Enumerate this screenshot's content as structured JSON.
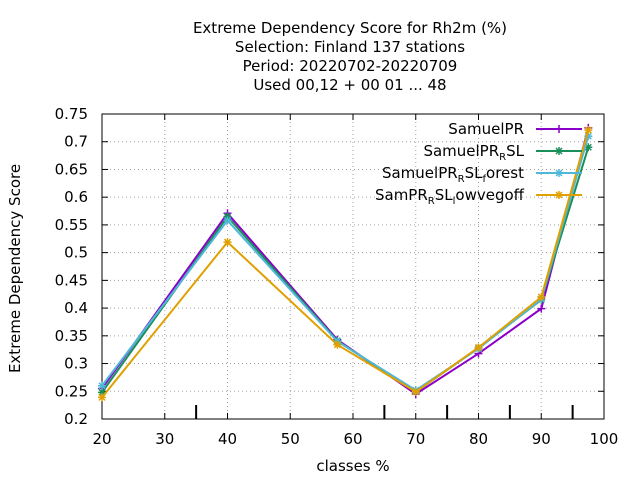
{
  "chart_data": {
    "type": "line",
    "title": [
      "Extreme Dependency Score  for Rh2m (%)",
      "Selection: Finland     137 stations",
      "Period: 20220702-20220709",
      "Used  00,12  + 00 01 ... 48"
    ],
    "xlabel": "classes %",
    "ylabel": "Extreme Dependency Score",
    "xlim": [
      20,
      100
    ],
    "ylim": [
      0.2,
      0.75
    ],
    "x_ticks": [
      20,
      30,
      40,
      50,
      60,
      70,
      80,
      90,
      100
    ],
    "y_ticks": [
      0.2,
      0.25,
      0.3,
      0.35,
      0.4,
      0.45,
      0.5,
      0.55,
      0.6,
      0.65,
      0.7,
      0.75
    ],
    "x_tick_labels": [
      "20",
      "30",
      "40",
      "50",
      "60",
      "70",
      "80",
      "90",
      "100"
    ],
    "y_tick_labels": [
      "0.2",
      "0.25",
      "0.3",
      "0.35",
      "0.4",
      "0.45",
      "0.5",
      "0.55",
      "0.6",
      "0.65",
      "0.7",
      "0.75"
    ],
    "bottom_markers": [
      35,
      65,
      75,
      85,
      95
    ],
    "grid": true,
    "legend_position": "top-right",
    "series": [
      {
        "name": "SamuelPR",
        "legend_parts": [
          {
            "t": "SamuelPR",
            "sub": false
          }
        ],
        "color": "#8b00c8",
        "marker": "plus",
        "x": [
          20,
          40,
          57.5,
          70,
          80,
          90,
          97.5
        ],
        "y": [
          0.255,
          0.571,
          0.343,
          0.245,
          0.318,
          0.399,
          0.725
        ]
      },
      {
        "name": "SamuelPR_RSL",
        "legend_parts": [
          {
            "t": "SamuelPR",
            "sub": false
          },
          {
            "t": "R",
            "sub": true
          },
          {
            "t": "SL",
            "sub": false
          }
        ],
        "color": "#1a8f5a",
        "marker": "star",
        "x": [
          20,
          40,
          57.5,
          70,
          80,
          90,
          97.5
        ],
        "y": [
          0.248,
          0.565,
          0.341,
          0.249,
          0.328,
          0.415,
          0.69
        ]
      },
      {
        "name": "SamuelPR_RSL_forest",
        "legend_parts": [
          {
            "t": "SamuelPR",
            "sub": false
          },
          {
            "t": "R",
            "sub": true
          },
          {
            "t": "SL",
            "sub": false
          },
          {
            "t": "f",
            "sub": true
          },
          {
            "t": "orest",
            "sub": false
          }
        ],
        "color": "#4fb8d8",
        "marker": "star",
        "x": [
          20,
          40,
          57.5,
          70,
          80,
          90,
          97.5
        ],
        "y": [
          0.26,
          0.558,
          0.34,
          0.252,
          0.327,
          0.416,
          0.71
        ]
      },
      {
        "name": "SamPR_RSL_lowvegoff",
        "legend_parts": [
          {
            "t": "SamPR",
            "sub": false
          },
          {
            "t": "R",
            "sub": true
          },
          {
            "t": "SL",
            "sub": false
          },
          {
            "t": "l",
            "sub": true
          },
          {
            "t": "owvegoff",
            "sub": false
          }
        ],
        "color": "#e0a000",
        "marker": "star",
        "x": [
          20,
          40,
          57.5,
          70,
          80,
          90,
          97.5
        ],
        "y": [
          0.239,
          0.519,
          0.334,
          0.249,
          0.329,
          0.42,
          0.721
        ]
      }
    ]
  }
}
